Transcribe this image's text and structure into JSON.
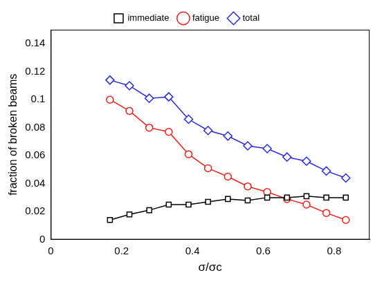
{
  "chart_data": {
    "type": "line",
    "x_label": "σ/σc",
    "y_label": "fraction of broken beams",
    "x": [
      0.167,
      0.222,
      0.278,
      0.333,
      0.389,
      0.444,
      0.5,
      0.556,
      0.611,
      0.667,
      0.722,
      0.778,
      0.833
    ],
    "series": [
      {
        "name": "immediate",
        "color": "#000000",
        "marker": "square",
        "line_style": "solid",
        "values": [
          0.014,
          0.018,
          0.021,
          0.025,
          0.025,
          0.027,
          0.029,
          0.028,
          0.03,
          0.03,
          0.031,
          0.03,
          0.03
        ]
      },
      {
        "name": "fatigue",
        "color": "#e8211c",
        "marker": "circle",
        "line_style": "solid",
        "values": [
          0.1,
          0.092,
          0.08,
          0.077,
          0.061,
          0.051,
          0.045,
          0.038,
          0.034,
          0.029,
          0.025,
          0.019,
          0.014
        ]
      },
      {
        "name": "total",
        "color": "#2b2bd0",
        "marker": "diamond",
        "line_style": "solid",
        "values": [
          0.114,
          0.11,
          0.101,
          0.102,
          0.086,
          0.078,
          0.074,
          0.067,
          0.065,
          0.059,
          0.056,
          0.049,
          0.044
        ]
      }
    ],
    "xlim": [
      0,
      0.9
    ],
    "xticks": [
      0,
      0.2,
      0.4,
      0.6,
      0.8
    ],
    "ylim": [
      0,
      0.15
    ],
    "yticks": [
      0,
      0.02,
      0.04,
      0.06,
      0.08,
      0.1,
      0.12,
      0.14
    ],
    "grid": false,
    "legend": "top"
  }
}
